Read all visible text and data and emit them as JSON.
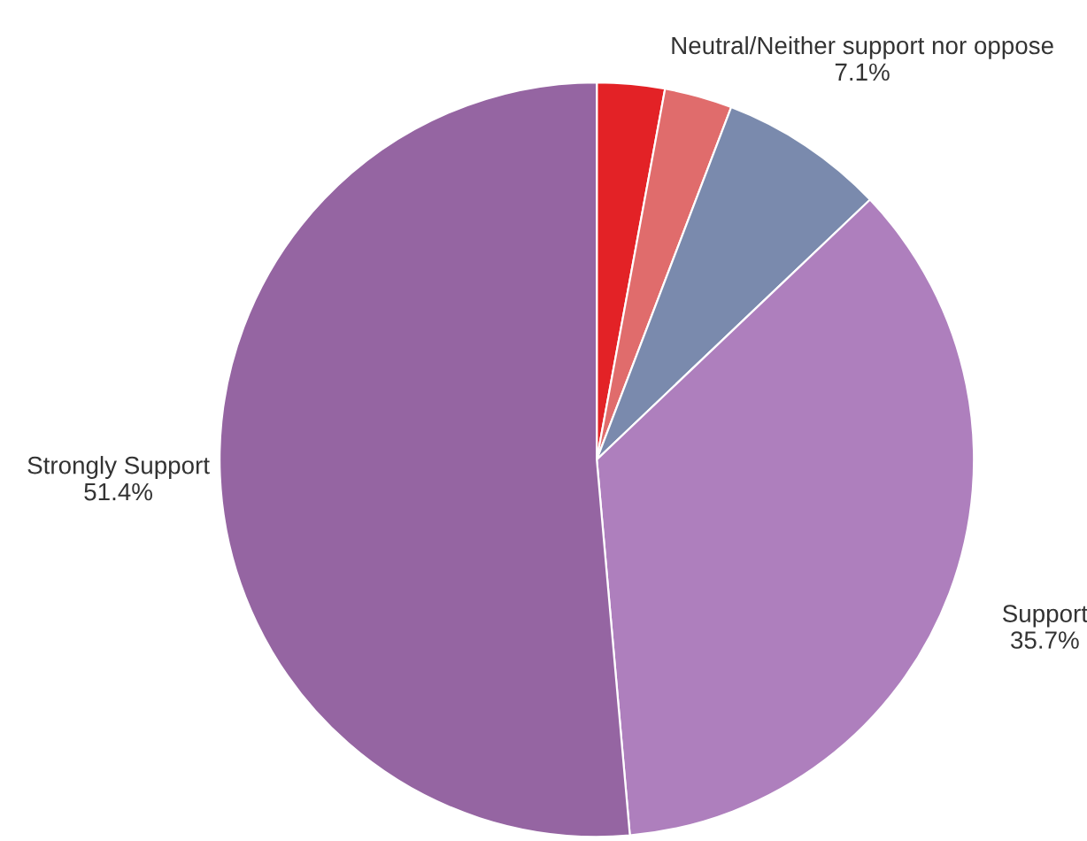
{
  "chart_data": {
    "type": "pie",
    "categories": [
      null,
      null,
      "Neutral/Neither support nor oppose",
      "Support",
      "Strongly Support"
    ],
    "values": [
      2.9,
      2.9,
      7.1,
      35.7,
      51.4
    ],
    "value_labels": [
      null,
      null,
      "7.1%",
      "35.7%",
      "51.4%"
    ],
    "colors": [
      "#e32226",
      "#e06c6c",
      "#7a8aad",
      "#ae7fbd",
      "#9565a2"
    ]
  }
}
